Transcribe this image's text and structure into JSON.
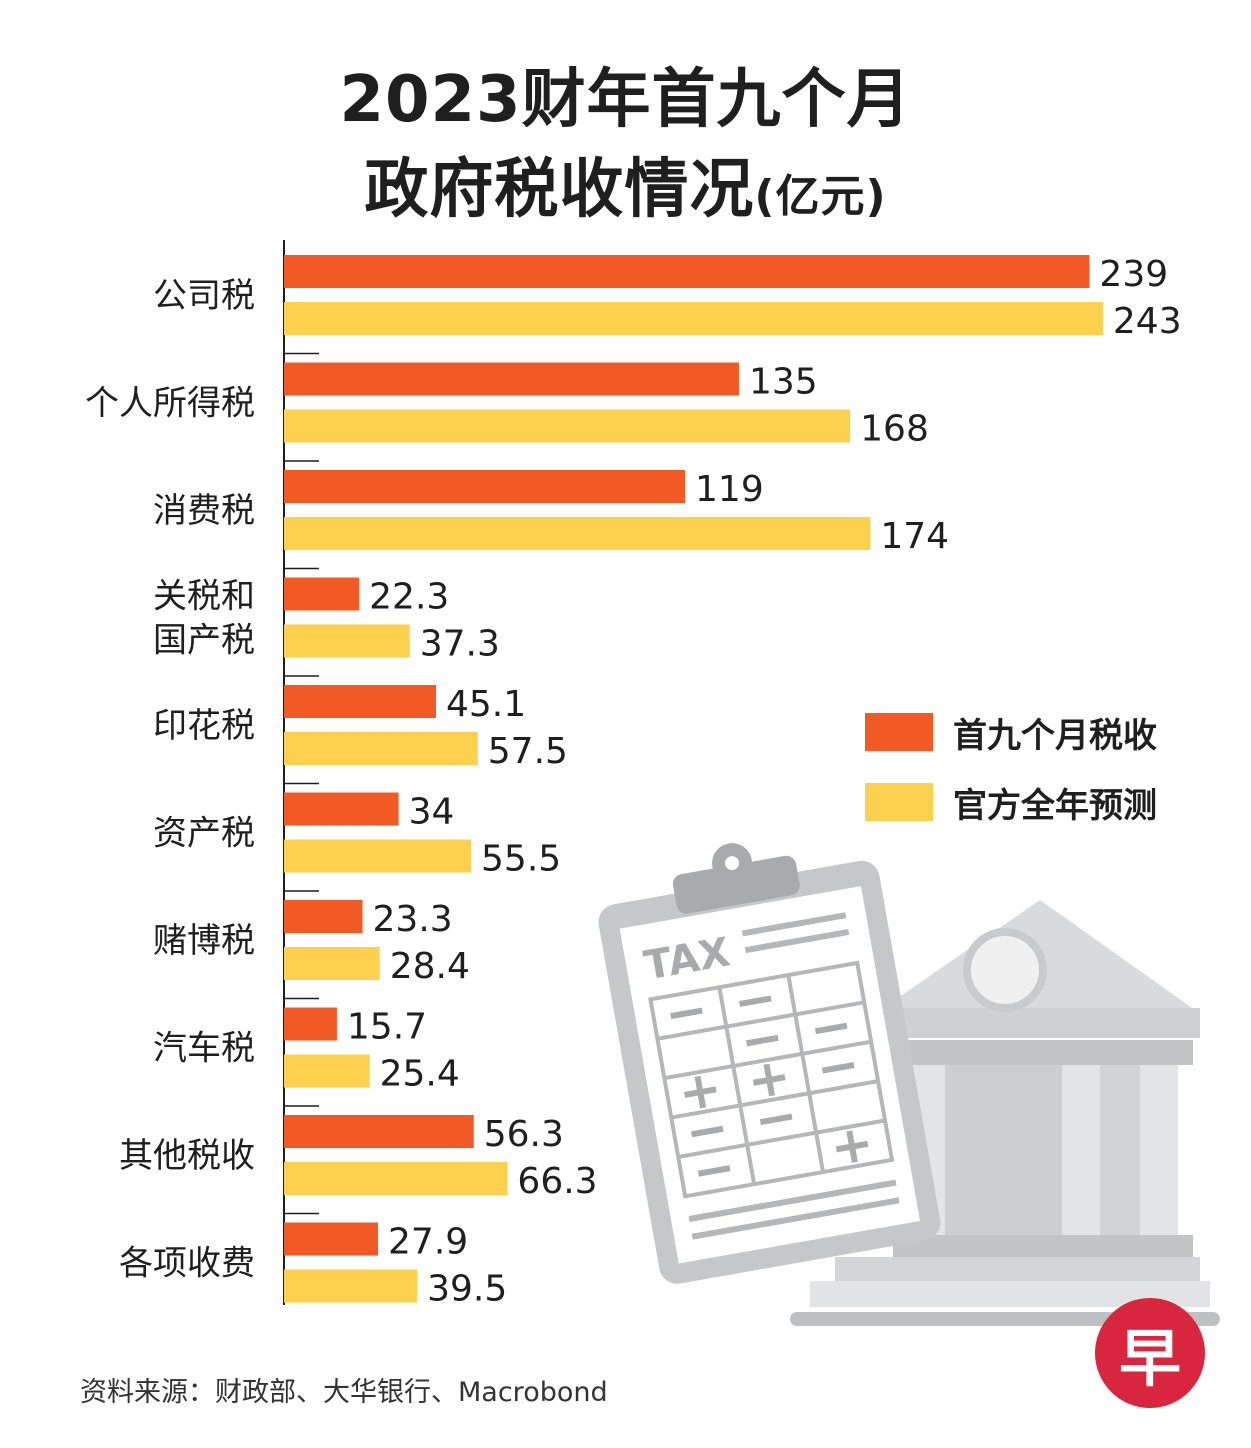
{
  "header": {
    "title_line1": "2023财年首九个月",
    "title_line2_main": "政府税收情况",
    "title_line2_unit": "(亿元)"
  },
  "colors": {
    "series1": "#f15a24",
    "series2": "#fdd04e",
    "axis": "#1f1f1f",
    "illustration_gray": "#c9cacc",
    "logo_red": "#d7263d"
  },
  "legend": {
    "items": [
      {
        "label": "首九个月税收",
        "color": "#f15a24"
      },
      {
        "label": "官方全年预测",
        "color": "#fdd04e"
      }
    ],
    "placement": "right-middle"
  },
  "illustration": {
    "clipboard_text": "TAX",
    "icons": [
      "tax-clipboard-icon",
      "government-building-icon"
    ]
  },
  "source": "资料来源：财政部、大华银行、Macrobond",
  "logo": {
    "glyph": "早"
  },
  "chart_data": {
    "type": "bar",
    "orientation": "horizontal",
    "title": "2023财年首九个月政府税收情况(亿元)",
    "categories": [
      [
        "公司税"
      ],
      [
        "个人所得税"
      ],
      [
        "消费税"
      ],
      [
        "关税和",
        "国产税"
      ],
      [
        "印花税"
      ],
      [
        "资产税"
      ],
      [
        "赌博税"
      ],
      [
        "汽车税"
      ],
      [
        "其他税收"
      ],
      [
        "各项收费"
      ]
    ],
    "series": [
      {
        "name": "首九个月税收",
        "values": [
          239,
          135,
          119,
          22.3,
          45.1,
          34,
          23.3,
          15.7,
          56.3,
          27.9
        ],
        "labels": [
          "239",
          "135",
          "119",
          "22.3",
          "45.1",
          "34",
          "23.3",
          "15.7",
          "56.3",
          "27.9"
        ]
      },
      {
        "name": "官方全年预测",
        "values": [
          243,
          168,
          174,
          37.3,
          57.5,
          55.5,
          28.4,
          25.4,
          66.3,
          39.5
        ],
        "labels": [
          "243",
          "168",
          "174",
          "37.3",
          "57.5",
          "55.5",
          "28.4",
          "25.4",
          "66.3",
          "39.5"
        ]
      }
    ],
    "xlim": [
      0,
      243
    ],
    "grid": false,
    "legend": "right"
  }
}
